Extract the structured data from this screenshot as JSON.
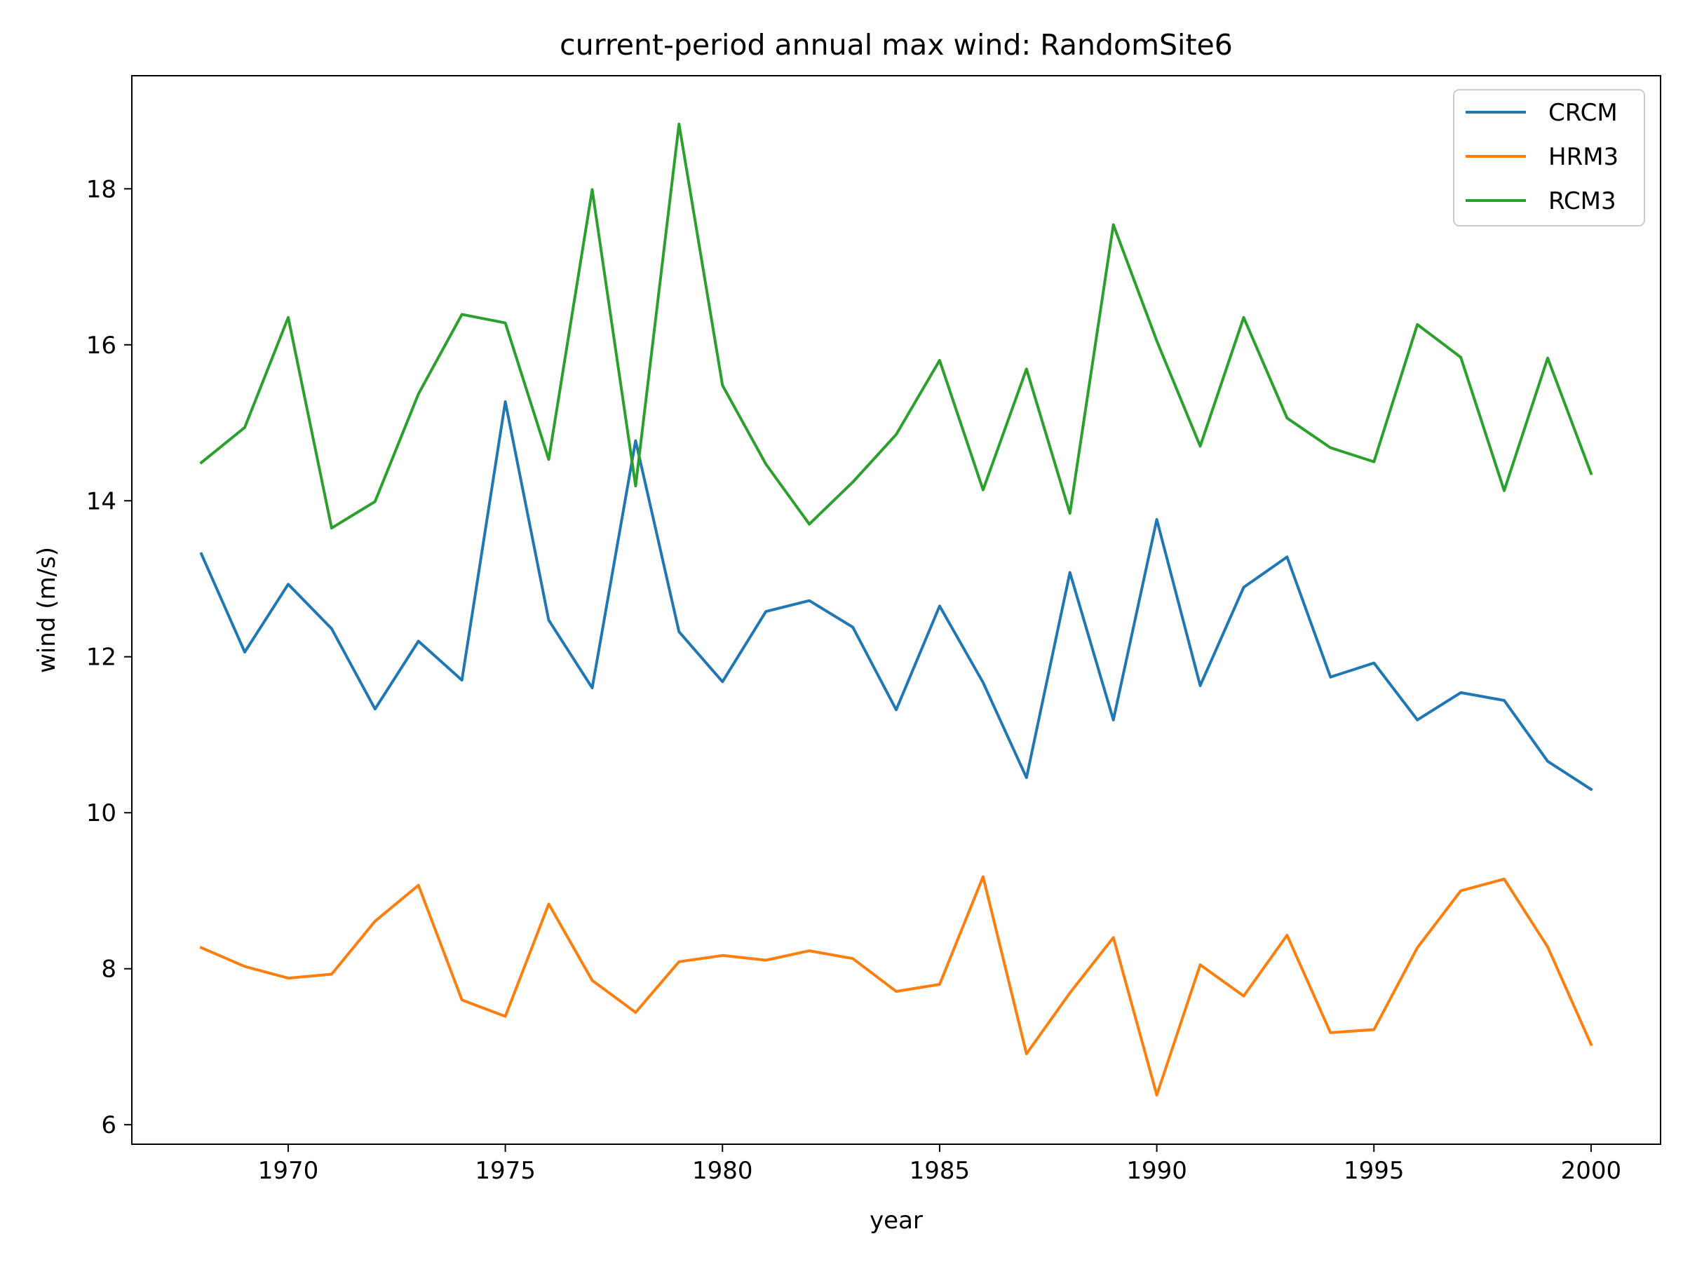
{
  "chart_data": {
    "type": "line",
    "title": "current-period annual max wind: RandomSite6",
    "xlabel": "year",
    "ylabel": "wind (m/s)",
    "xlim": [
      1966.4,
      2001.6
    ],
    "ylim": [
      5.75,
      19.45
    ],
    "xticks": [
      1970,
      1975,
      1980,
      1985,
      1990,
      1995,
      2000
    ],
    "yticks": [
      6,
      8,
      10,
      12,
      14,
      16,
      18
    ],
    "grid": false,
    "legend_position": "top-right",
    "x": [
      1968,
      1969,
      1970,
      1971,
      1972,
      1973,
      1974,
      1975,
      1976,
      1977,
      1978,
      1979,
      1980,
      1981,
      1982,
      1983,
      1984,
      1985,
      1986,
      1987,
      1988,
      1989,
      1990,
      1991,
      1992,
      1993,
      1994,
      1995,
      1996,
      1997,
      1998,
      1999,
      2000
    ],
    "series": [
      {
        "name": "CRCM",
        "color": "#1f77b4",
        "values": [
          13.32,
          12.06,
          12.93,
          12.36,
          11.33,
          12.2,
          11.7,
          15.27,
          12.47,
          11.6,
          14.77,
          12.32,
          11.68,
          12.58,
          12.72,
          12.38,
          11.32,
          12.65,
          11.67,
          10.45,
          13.08,
          11.19,
          13.76,
          11.63,
          12.89,
          13.28,
          11.74,
          11.92,
          11.19,
          11.54,
          11.44,
          10.66,
          10.3
        ]
      },
      {
        "name": "HRM3",
        "color": "#ff7f0e",
        "values": [
          8.27,
          8.03,
          7.88,
          7.93,
          8.61,
          9.07,
          7.6,
          7.39,
          8.83,
          7.85,
          7.44,
          8.09,
          8.17,
          8.11,
          8.23,
          8.13,
          7.71,
          7.8,
          9.18,
          6.91,
          7.69,
          8.4,
          6.38,
          8.05,
          7.65,
          8.43,
          7.18,
          7.22,
          8.27,
          9.0,
          9.15,
          8.28,
          7.03
        ]
      },
      {
        "name": "RCM3",
        "color": "#2ca02c",
        "values": [
          14.49,
          14.94,
          16.35,
          13.65,
          13.99,
          15.37,
          16.39,
          16.28,
          14.53,
          17.99,
          14.19,
          18.83,
          15.48,
          14.47,
          13.7,
          14.24,
          14.85,
          15.8,
          14.14,
          15.69,
          13.84,
          17.54,
          16.05,
          14.7,
          16.35,
          15.06,
          14.68,
          14.5,
          16.26,
          15.84,
          14.13,
          15.83,
          14.35
        ]
      }
    ]
  }
}
